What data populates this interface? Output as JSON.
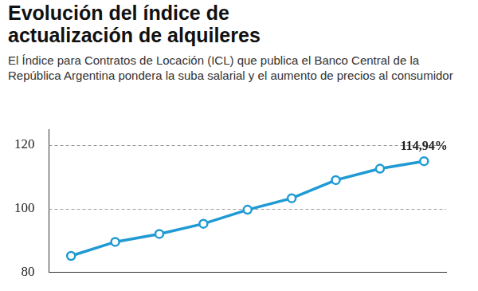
{
  "chart_data": {
    "type": "line",
    "title": "Evolución del índice de actualización de alquileres",
    "subtitle": "El Índice para Contratos de Locación (ICL) que publica el Banco Central de la República Argentina pondera la suba salarial y el aumento de precios al consumidor",
    "categories": [
      null,
      null,
      null,
      null,
      null,
      null,
      null,
      null,
      null
    ],
    "values": [
      85.2,
      89.6,
      92.1,
      95.3,
      99.7,
      103.3,
      109.0,
      112.6,
      114.94
    ],
    "value_labels": [
      null,
      null,
      null,
      null,
      null,
      null,
      null,
      null,
      "114,94%"
    ],
    "data_labels": true,
    "color": "#1f9ad3",
    "marker": "hollow",
    "ylim": [
      80,
      125
    ],
    "yticks": [
      80,
      100,
      120
    ],
    "grid": true,
    "tick_labels": "y"
  }
}
